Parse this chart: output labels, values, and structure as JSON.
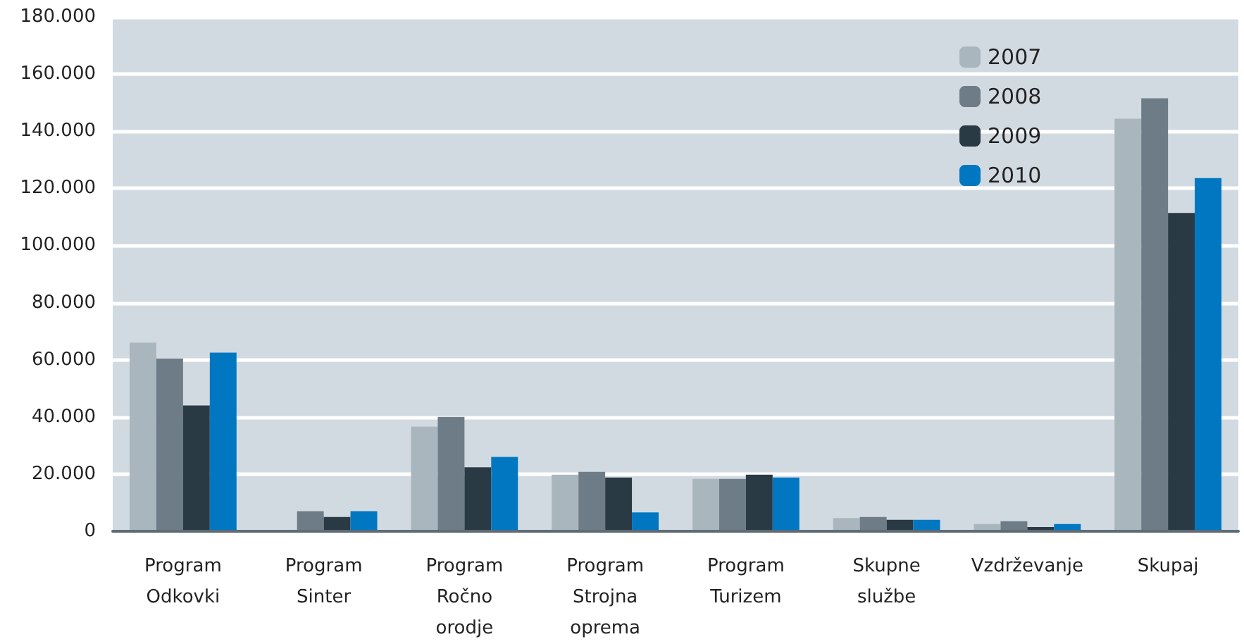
{
  "chart_data": {
    "type": "bar",
    "categories": [
      "Program\nOdkovki",
      "Program\nSinter",
      "Program\nRočno\norodje",
      "Program\nStrojna\noprema",
      "Program\nTurizem",
      "Skupne\nslužbe",
      "Vzdrževanje",
      "Skupaj"
    ],
    "series": [
      {
        "name": "2007",
        "color": "#aab6be",
        "values": [
          66000,
          null,
          36600,
          19800,
          18300,
          4600,
          2500,
          144400
        ]
      },
      {
        "name": "2008",
        "color": "#6e7c88",
        "values": [
          60500,
          7000,
          40000,
          20800,
          18300,
          5000,
          3500,
          151500
        ]
      },
      {
        "name": "2009",
        "color": "#2a3a45",
        "values": [
          44000,
          5000,
          22400,
          18800,
          19800,
          4000,
          1500,
          111400
        ]
      },
      {
        "name": "2010",
        "color": "#0077c0",
        "values": [
          62500,
          7000,
          26000,
          6600,
          18800,
          4000,
          2500,
          123600
        ]
      }
    ],
    "ylim": [
      0,
      180000
    ],
    "yticks": [
      {
        "value": 0,
        "label": "0"
      },
      {
        "value": 20000,
        "label": "20.000"
      },
      {
        "value": 40000,
        "label": "40.000"
      },
      {
        "value": 60000,
        "label": "60.000"
      },
      {
        "value": 80000,
        "label": "80.000"
      },
      {
        "value": 100000,
        "label": "100.000"
      },
      {
        "value": 120000,
        "label": "120.000"
      },
      {
        "value": 140000,
        "label": "140.000"
      },
      {
        "value": 160000,
        "label": "160.000"
      },
      {
        "value": 180000,
        "label": "180.000"
      }
    ],
    "grid": "y",
    "legend": "top right"
  }
}
